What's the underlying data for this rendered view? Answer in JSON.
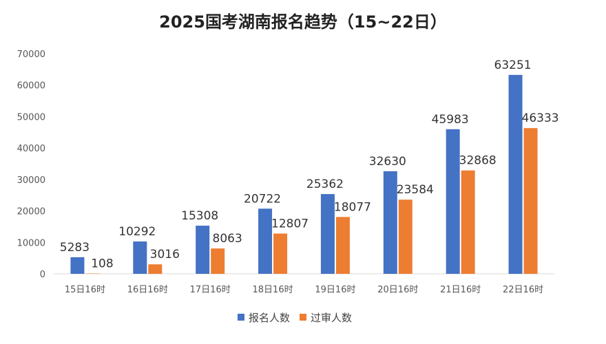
{
  "chart_data": {
    "type": "bar",
    "title": "2025国考湖南报名趋势（15~22日）",
    "categories": [
      "15日16时",
      "16日16时",
      "17日16时",
      "18日16时",
      "19日16时",
      "20日16时",
      "21日16时",
      "22日16时"
    ],
    "series": [
      {
        "name": "报名人数",
        "color": "#4472C4",
        "values": [
          5283,
          10292,
          15308,
          20722,
          25362,
          32630,
          45983,
          63251
        ]
      },
      {
        "name": "过审人数",
        "color": "#ED7D31",
        "values": [
          108,
          3016,
          8063,
          12807,
          18077,
          23584,
          32868,
          46333
        ]
      }
    ],
    "yticks": [
      "0",
      "10000",
      "20000",
      "30000",
      "40000",
      "50000",
      "60000",
      "70000"
    ],
    "ylim": [
      0,
      70000
    ],
    "grid": false,
    "legend": "bottom-center",
    "xlabel": "",
    "ylabel": ""
  }
}
